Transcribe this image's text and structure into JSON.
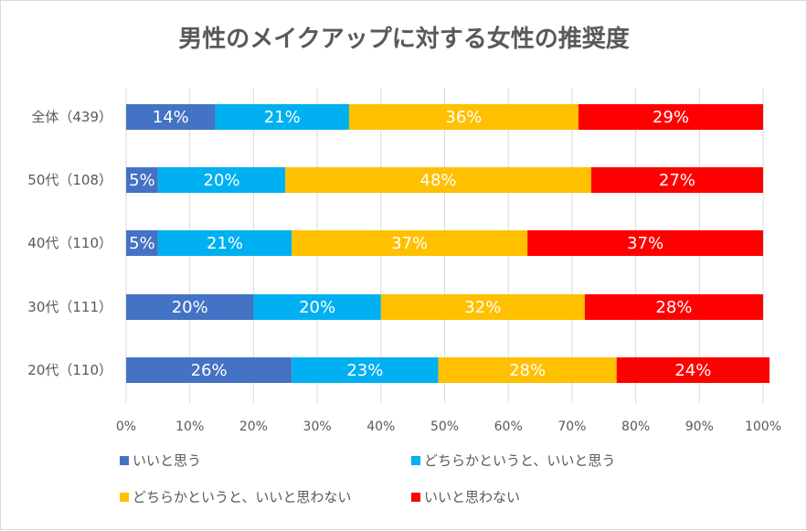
{
  "chart_data": {
    "type": "bar",
    "orientation": "horizontal",
    "stacked": "percent",
    "title": "男性のメイクアップに対する女性の推奨度",
    "categories": [
      "全体（439）",
      "50代（108）",
      "40代（110）",
      "30代（111）",
      "20代（110）"
    ],
    "series": [
      {
        "name": "いいと思う",
        "color": "#4472c4",
        "values": [
          14,
          5,
          5,
          20,
          26
        ]
      },
      {
        "name": "どちらかというと、いいと思う",
        "color": "#00b0f0",
        "values": [
          21,
          20,
          21,
          20,
          23
        ]
      },
      {
        "name": "どちらかというと、いいと思わない",
        "color": "#ffc000",
        "values": [
          36,
          48,
          37,
          32,
          28
        ]
      },
      {
        "name": "いいと思わない",
        "color": "#ff0000",
        "values": [
          29,
          27,
          37,
          28,
          24
        ]
      }
    ],
    "xlim": [
      0,
      100
    ],
    "xticks": [
      "0%",
      "10%",
      "20%",
      "30%",
      "40%",
      "50%",
      "60%",
      "70%",
      "80%",
      "90%",
      "100%"
    ],
    "value_suffix": "%",
    "grid": true,
    "legend": "bottom"
  }
}
